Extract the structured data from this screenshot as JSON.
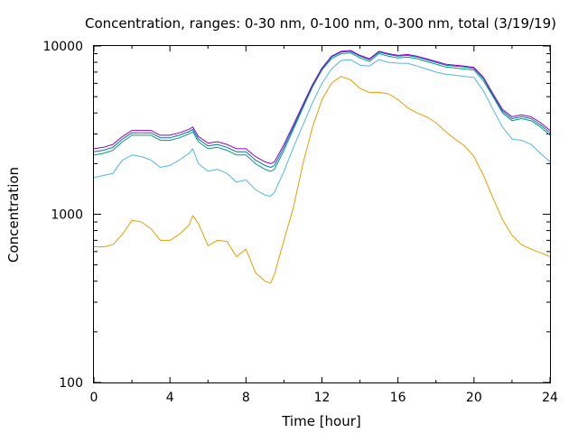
{
  "chart_data": {
    "type": "line",
    "title": "Concentration, ranges: 0-30 nm, 0-100 nm, 0-300 nm, total (3/19/19)",
    "xlabel": "Time [hour]",
    "ylabel": "Concentration",
    "xlim": [
      0,
      24
    ],
    "ylim": [
      100,
      10000
    ],
    "yscale": "log",
    "grid": false,
    "x_ticks": [
      "0",
      "4",
      "8",
      "12",
      "16",
      "20",
      "24"
    ],
    "y_ticks": [
      "100",
      "1000",
      "10000"
    ],
    "x": [
      0,
      0.5,
      1,
      1.5,
      2,
      2.5,
      3,
      3.5,
      4,
      4.5,
      5,
      5.2,
      5.5,
      6,
      6.5,
      7,
      7.5,
      8,
      8.5,
      9,
      9.3,
      9.5,
      10,
      10.5,
      11,
      11.5,
      12,
      12.5,
      13,
      13.5,
      14,
      14.5,
      15,
      15.5,
      16,
      16.5,
      17,
      17.5,
      18,
      18.5,
      19,
      19.5,
      20,
      20.5,
      21,
      21.5,
      22,
      22.5,
      23,
      23.5,
      24
    ],
    "series": [
      {
        "color": "#e69f00",
        "values": [
          640,
          640,
          660,
          760,
          920,
          900,
          820,
          700,
          700,
          760,
          860,
          980,
          880,
          650,
          700,
          690,
          560,
          620,
          450,
          400,
          390,
          440,
          700,
          1100,
          2000,
          3300,
          4800,
          6000,
          6600,
          6300,
          5600,
          5300,
          5300,
          5200,
          4800,
          4300,
          4000,
          3800,
          3500,
          3100,
          2800,
          2550,
          2200,
          1700,
          1250,
          930,
          750,
          660,
          620,
          590,
          560
        ]
      },
      {
        "color": "#56b4e9",
        "values": [
          1650,
          1700,
          1750,
          2100,
          2250,
          2200,
          2100,
          1900,
          1950,
          2100,
          2300,
          2450,
          2000,
          1800,
          1850,
          1750,
          1550,
          1600,
          1400,
          1300,
          1280,
          1350,
          1800,
          2500,
          3400,
          4600,
          6000,
          7300,
          8200,
          8300,
          7700,
          7600,
          8300,
          8000,
          7900,
          7900,
          7600,
          7300,
          7000,
          6800,
          6700,
          6600,
          6500,
          5400,
          4200,
          3300,
          2800,
          2750,
          2600,
          2300,
          2050
        ]
      },
      {
        "color": "#009e73",
        "values": [
          2250,
          2300,
          2400,
          2700,
          2950,
          2950,
          2950,
          2750,
          2750,
          2850,
          3000,
          3100,
          2700,
          2450,
          2500,
          2400,
          2250,
          2250,
          2000,
          1850,
          1800,
          1850,
          2400,
          3200,
          4300,
          5700,
          7200,
          8400,
          9000,
          9100,
          8500,
          8100,
          9000,
          8700,
          8500,
          8600,
          8400,
          8100,
          7800,
          7500,
          7400,
          7300,
          7200,
          6200,
          5000,
          4000,
          3600,
          3700,
          3600,
          3300,
          2950
        ]
      },
      {
        "color": "#0072b2",
        "values": [
          2350,
          2400,
          2500,
          2800,
          3050,
          3050,
          3050,
          2850,
          2850,
          2950,
          3100,
          3200,
          2800,
          2550,
          2600,
          2500,
          2350,
          2350,
          2100,
          1950,
          1900,
          1950,
          2500,
          3300,
          4400,
          5800,
          7300,
          8600,
          9200,
          9300,
          8700,
          8300,
          9200,
          8900,
          8700,
          8800,
          8600,
          8300,
          8000,
          7700,
          7600,
          7500,
          7350,
          6400,
          5100,
          4100,
          3700,
          3800,
          3700,
          3400,
          3050
        ]
      },
      {
        "color": "#9400d3",
        "values": [
          2450,
          2500,
          2600,
          2900,
          3150,
          3150,
          3150,
          2950,
          2950,
          3050,
          3200,
          3300,
          2900,
          2650,
          2700,
          2600,
          2450,
          2450,
          2200,
          2050,
          2000,
          2050,
          2600,
          3400,
          4500,
          5900,
          7400,
          8700,
          9300,
          9400,
          8800,
          8400,
          9300,
          9000,
          8800,
          8900,
          8700,
          8400,
          8100,
          7800,
          7700,
          7600,
          7450,
          6500,
          5200,
          4200,
          3800,
          3900,
          3800,
          3500,
          3150
        ]
      }
    ]
  }
}
